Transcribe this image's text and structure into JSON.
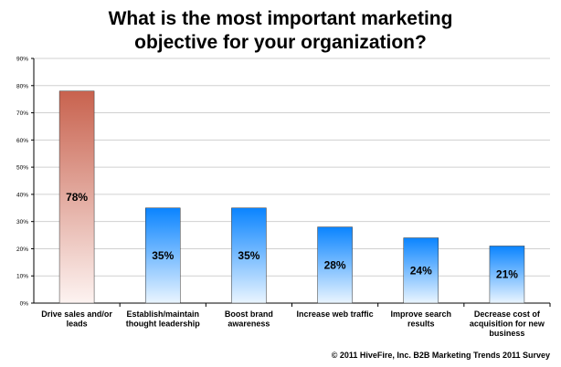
{
  "title_lines": [
    "What is the most important marketing",
    "objective for your organization?"
  ],
  "footer": "© 2011 HiveFire, Inc. B2B Marketing Trends 2011 Survey",
  "colors": {
    "highlight_top": "#c8624e",
    "highlight_bottom": "#fdf3f1",
    "bar_top": "#0a84ff",
    "bar_bottom": "#eaf5ff",
    "grid": "#d0d0d0",
    "axis": "#000000"
  },
  "chart_data": {
    "type": "bar",
    "title": "What is the most important marketing objective for your organization?",
    "categories": [
      [
        "Drive sales and/or",
        "leads"
      ],
      [
        "Establish/maintain",
        "thought leadership"
      ],
      [
        "Boost brand",
        "awareness"
      ],
      [
        "Increase web traffic"
      ],
      [
        "Improve search",
        "results"
      ],
      [
        "Decrease cost of",
        "acquisition for new",
        "business"
      ]
    ],
    "values": [
      78,
      35,
      35,
      28,
      24,
      21
    ],
    "value_labels": [
      "78%",
      "35%",
      "35%",
      "28%",
      "24%",
      "21%"
    ],
    "y_ticks": [
      0,
      10,
      20,
      30,
      40,
      50,
      60,
      70,
      80,
      90
    ],
    "y_tick_labels": [
      "0%",
      "10%",
      "20%",
      "30%",
      "40%",
      "50%",
      "60%",
      "70%",
      "80%",
      "90%"
    ],
    "ylim": [
      0,
      90
    ],
    "xlabel": "",
    "ylabel": "",
    "grid": true,
    "highlight_index": 0
  }
}
